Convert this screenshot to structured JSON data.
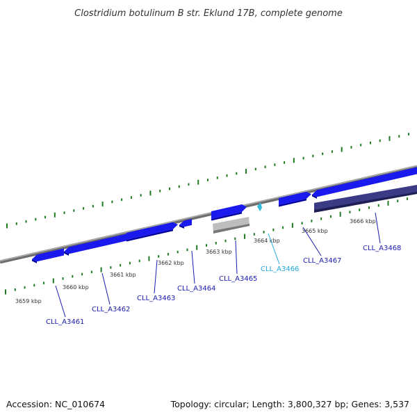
{
  "title": "Clostridium botulinum B str. Eklund 17B, complete genome",
  "footer": {
    "accession": "Accession: NC_010674",
    "summary": "Topology: circular; Length: 3,800,327 bp; Genes: 3,537"
  },
  "colors": {
    "gene": "#1a1aee",
    "gene_dark": "#0000aa",
    "gene_highlight": "#33bbdd",
    "gene_purple": "#3a3a85",
    "rna_grey": "#bdbdbd",
    "backbone": "#888888",
    "tick": "#1e7a1e",
    "label": "#1a1ab0",
    "label_highlight": "#22aadd"
  },
  "kbp_labels": [
    "3659 kbp",
    "3660 kbp",
    "3661 kbp",
    "3662 kbp",
    "3663 kbp",
    "3664 kbp",
    "3665 kbp",
    "3666 kbp"
  ],
  "genes": [
    {
      "name": "CLL_A3461",
      "highlight": false
    },
    {
      "name": "CLL_A3462",
      "highlight": false
    },
    {
      "name": "CLL_A3463",
      "highlight": false
    },
    {
      "name": "CLL_A3464",
      "highlight": false
    },
    {
      "name": "CLL_A3465",
      "highlight": false
    },
    {
      "name": "CLL_A3466",
      "highlight": true
    },
    {
      "name": "CLL_A3467",
      "highlight": false
    },
    {
      "name": "CLL_A3468",
      "highlight": false
    }
  ]
}
